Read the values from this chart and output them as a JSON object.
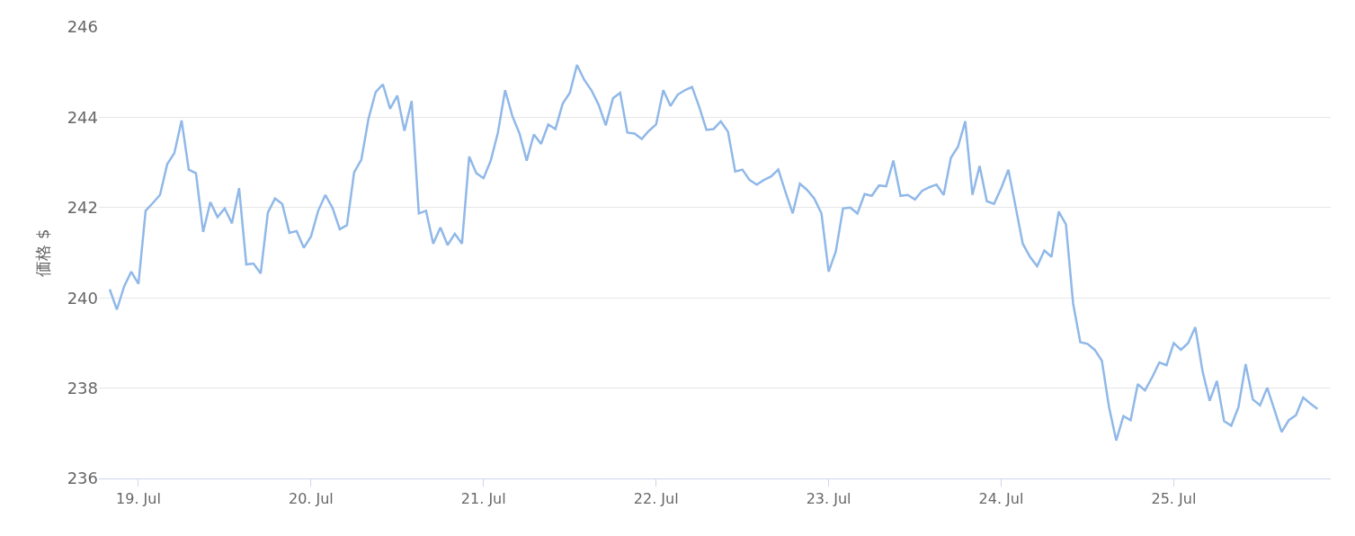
{
  "chart_data": {
    "type": "line",
    "ylabel": "価格 $",
    "x": [
      "--07-18T20:00",
      "--07-18T21:00",
      "--07-18T22:00",
      "--07-18T23:00",
      "--07-19T00:00",
      "--07-19T01:00",
      "--07-19T02:00",
      "--07-19T03:00",
      "--07-19T04:00",
      "--07-19T05:00",
      "--07-19T06:00",
      "--07-19T07:00",
      "--07-19T08:00",
      "--07-19T09:00",
      "--07-19T10:00",
      "--07-19T11:00",
      "--07-19T12:00",
      "--07-19T13:00",
      "--07-19T14:00",
      "--07-19T15:00",
      "--07-19T16:00",
      "--07-19T17:00",
      "--07-19T18:00",
      "--07-19T19:00",
      "--07-19T20:00",
      "--07-19T21:00",
      "--07-19T22:00",
      "--07-19T23:00",
      "--07-20T00:00",
      "--07-20T01:00",
      "--07-20T02:00",
      "--07-20T03:00",
      "--07-20T04:00",
      "--07-20T05:00",
      "--07-20T06:00",
      "--07-20T07:00",
      "--07-20T08:00",
      "--07-20T09:00",
      "--07-20T10:00",
      "--07-20T11:00",
      "--07-20T12:00",
      "--07-20T13:00",
      "--07-20T14:00",
      "--07-20T15:00",
      "--07-20T16:00",
      "--07-20T17:00",
      "--07-20T18:00",
      "--07-20T19:00",
      "--07-20T20:00",
      "--07-20T21:00",
      "--07-20T22:00",
      "--07-20T23:00",
      "--07-21T00:00",
      "--07-21T01:00",
      "--07-21T02:00",
      "--07-21T03:00",
      "--07-21T04:00",
      "--07-21T05:00",
      "--07-21T06:00",
      "--07-21T07:00",
      "--07-21T08:00",
      "--07-21T09:00",
      "--07-21T10:00",
      "--07-21T11:00",
      "--07-21T12:00",
      "--07-21T13:00",
      "--07-21T14:00",
      "--07-21T15:00",
      "--07-21T16:00",
      "--07-21T17:00",
      "--07-21T18:00",
      "--07-21T19:00",
      "--07-21T20:00",
      "--07-21T21:00",
      "--07-21T22:00",
      "--07-21T23:00",
      "--07-22T00:00",
      "--07-22T01:00",
      "--07-22T02:00",
      "--07-22T03:00",
      "--07-22T04:00",
      "--07-22T05:00",
      "--07-22T06:00",
      "--07-22T07:00",
      "--07-22T08:00",
      "--07-22T09:00",
      "--07-22T10:00",
      "--07-22T11:00",
      "--07-22T12:00",
      "--07-22T13:00",
      "--07-22T14:00",
      "--07-22T15:00",
      "--07-22T16:00",
      "--07-22T17:00",
      "--07-22T18:00",
      "--07-22T19:00",
      "--07-22T20:00",
      "--07-22T21:00",
      "--07-22T22:00",
      "--07-22T23:00",
      "--07-23T00:00",
      "--07-23T01:00",
      "--07-23T02:00",
      "--07-23T03:00",
      "--07-23T04:00",
      "--07-23T05:00",
      "--07-23T06:00",
      "--07-23T07:00",
      "--07-23T08:00",
      "--07-23T09:00",
      "--07-23T10:00",
      "--07-23T11:00",
      "--07-23T12:00",
      "--07-23T13:00",
      "--07-23T14:00",
      "--07-23T15:00",
      "--07-23T16:00",
      "--07-23T17:00",
      "--07-23T18:00",
      "--07-23T19:00",
      "--07-23T20:00",
      "--07-23T21:00",
      "--07-23T22:00",
      "--07-23T23:00",
      "--07-24T00:00",
      "--07-24T01:00",
      "--07-24T02:00",
      "--07-24T03:00",
      "--07-24T04:00",
      "--07-24T05:00",
      "--07-24T06:00",
      "--07-24T07:00",
      "--07-24T08:00",
      "--07-24T09:00",
      "--07-24T10:00",
      "--07-24T11:00",
      "--07-24T12:00",
      "--07-24T13:00",
      "--07-24T14:00",
      "--07-24T15:00",
      "--07-24T16:00",
      "--07-24T17:00",
      "--07-24T18:00",
      "--07-24T19:00",
      "--07-24T20:00",
      "--07-24T21:00",
      "--07-24T22:00",
      "--07-24T23:00",
      "--07-25T00:00",
      "--07-25T01:00",
      "--07-25T02:00",
      "--07-25T03:00",
      "--07-25T04:00",
      "--07-25T05:00",
      "--07-25T06:00",
      "--07-25T07:00",
      "--07-25T08:00",
      "--07-25T09:00",
      "--07-25T10:00",
      "--07-25T11:00",
      "--07-25T12:00",
      "--07-25T13:00",
      "--07-25T14:00",
      "--07-25T15:00",
      "--07-25T16:00",
      "--07-25T17:00",
      "--07-25T18:00",
      "--07-25T19:00",
      "--07-25T20:00"
    ],
    "series": [
      {
        "color": "#90b8e8",
        "values": [
          240.19,
          239.74,
          240.25,
          240.58,
          240.31,
          241.93,
          242.1,
          242.28,
          242.96,
          243.21,
          243.93,
          242.84,
          242.76,
          241.46,
          242.12,
          241.79,
          241.98,
          241.65,
          242.43,
          240.74,
          240.76,
          240.54,
          241.89,
          242.2,
          242.08,
          241.44,
          241.48,
          241.11,
          241.36,
          241.93,
          242.28,
          241.99,
          241.52,
          241.61,
          242.78,
          243.06,
          243.97,
          244.56,
          244.73,
          244.19,
          244.48,
          243.7,
          244.36,
          241.87,
          241.93,
          241.2,
          241.56,
          241.17,
          241.42,
          241.2,
          243.13,
          242.76,
          242.65,
          243.04,
          243.66,
          244.6,
          244.03,
          243.64,
          243.04,
          243.62,
          243.41,
          243.84,
          243.74,
          244.3,
          244.54,
          245.16,
          244.83,
          244.6,
          244.28,
          243.82,
          244.42,
          244.54,
          243.66,
          243.64,
          243.52,
          243.7,
          243.84,
          244.6,
          244.25,
          244.5,
          244.6,
          244.67,
          244.23,
          243.72,
          243.74,
          243.91,
          243.68,
          242.8,
          242.84,
          242.61,
          242.51,
          242.61,
          242.69,
          242.84,
          242.34,
          241.87,
          242.53,
          242.39,
          242.2,
          241.87,
          240.58,
          241.03,
          241.98,
          242.0,
          241.87,
          242.3,
          242.26,
          242.49,
          242.47,
          243.04,
          242.26,
          242.28,
          242.18,
          242.37,
          242.45,
          242.51,
          242.28,
          243.1,
          243.35,
          243.91,
          242.28,
          242.92,
          242.14,
          242.08,
          242.43,
          242.84,
          242.02,
          241.2,
          240.91,
          240.7,
          241.05,
          240.91,
          241.91,
          241.63,
          239.88,
          239.02,
          238.98,
          238.85,
          238.61,
          237.58,
          236.84,
          237.38,
          237.29,
          238.09,
          237.95,
          238.24,
          238.57,
          238.51,
          239.0,
          238.85,
          239.0,
          239.35,
          238.38,
          237.72,
          238.16,
          237.27,
          237.17,
          237.58,
          238.53,
          237.75,
          237.62,
          238.01,
          237.52,
          237.03,
          237.29,
          237.4,
          237.79,
          237.66,
          237.54
        ]
      }
    ],
    "xlim": [
      "--07-18T18:30",
      "--07-25T21:50"
    ],
    "xticks": [
      {
        "value": "--07-19",
        "label": "19. Jul"
      },
      {
        "value": "--07-20",
        "label": "20. Jul"
      },
      {
        "value": "--07-21",
        "label": "21. Jul"
      },
      {
        "value": "--07-22",
        "label": "22. Jul"
      },
      {
        "value": "--07-23",
        "label": "23. Jul"
      },
      {
        "value": "--07-24",
        "label": "24. Jul"
      },
      {
        "value": "--07-25",
        "label": "25. Jul"
      }
    ],
    "ylim": [
      236,
      246
    ],
    "yticks": [
      236,
      238,
      240,
      242,
      244,
      246
    ],
    "grid": "y",
    "marker": "none",
    "line_style": "solid"
  }
}
